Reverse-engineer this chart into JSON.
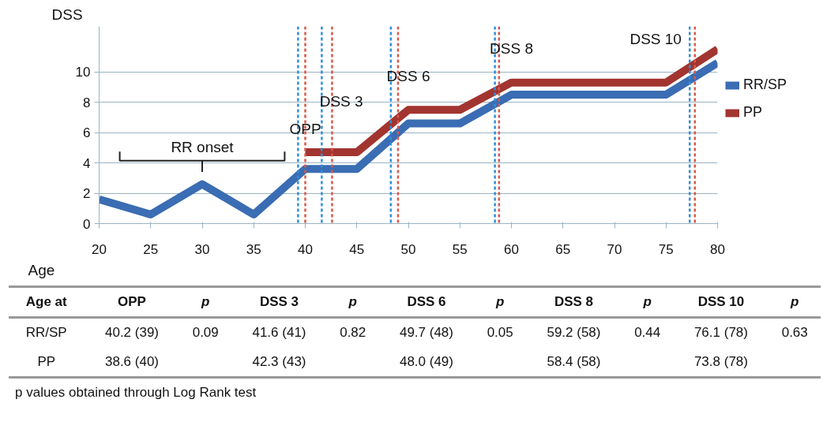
{
  "chart_data": {
    "type": "line",
    "xlabel": "Age",
    "ylabel": "DSS",
    "xlim": [
      20,
      80
    ],
    "xticks": [
      20,
      25,
      30,
      35,
      40,
      45,
      50,
      55,
      60,
      65,
      70,
      75,
      80
    ],
    "ylim": [
      0,
      13
    ],
    "yticks": [
      0,
      2,
      4,
      6,
      8,
      10
    ],
    "grid": "y",
    "legend": "right",
    "marker": "none",
    "line_style": "solid",
    "series": [
      {
        "name": "RR/SP",
        "color": "#3a6db3",
        "x": [
          20,
          25,
          30,
          35,
          40,
          45,
          50,
          55,
          60,
          75,
          80
        ],
        "values": [
          1.6,
          0.6,
          2.6,
          0.6,
          3.6,
          3.6,
          6.6,
          6.6,
          8.5,
          8.5,
          10.6
        ]
      },
      {
        "name": "PP",
        "color": "#a23530",
        "x": [
          40,
          45,
          50,
          55,
          60,
          75,
          80
        ],
        "values": [
          4.7,
          4.7,
          7.5,
          7.5,
          9.3,
          9.3,
          11.5
        ]
      }
    ],
    "ref_lines": [
      {
        "axis": "x",
        "value": 39.3,
        "color": "#2f8fdc",
        "line_style": "dashed"
      },
      {
        "axis": "x",
        "value": 41.6,
        "color": "#2f8fdc",
        "line_style": "dashed"
      },
      {
        "axis": "x",
        "value": 48.3,
        "color": "#2f8fdc",
        "line_style": "dashed"
      },
      {
        "axis": "x",
        "value": 58.4,
        "color": "#2f8fdc",
        "line_style": "dashed"
      },
      {
        "axis": "x",
        "value": 77.3,
        "color": "#2f8fdc",
        "line_style": "dashed"
      },
      {
        "axis": "x",
        "value": 40.0,
        "color": "#d9584a",
        "line_style": "dashed"
      },
      {
        "axis": "x",
        "value": 42.6,
        "color": "#d9584a",
        "line_style": "dashed"
      },
      {
        "axis": "x",
        "value": 49.0,
        "color": "#d9584a",
        "line_style": "dashed"
      },
      {
        "axis": "x",
        "value": 58.8,
        "color": "#d9584a",
        "line_style": "dashed"
      },
      {
        "axis": "x",
        "value": 77.8,
        "color": "#d9584a",
        "line_style": "dashed"
      }
    ],
    "annotations": [
      "RR onset",
      "OPP",
      "DSS 3",
      "DSS 6",
      "DSS 8",
      "DSS 10",
      "Age at",
      "OPP",
      "p",
      "DSS 3",
      "p",
      "DSS 6",
      "p",
      "DSS 8",
      "p",
      "DSS 10",
      "p",
      "RR/SP",
      "40.2 (39)",
      "0.09",
      "41.6 (41)",
      "0.82",
      "49.7 (48)",
      "0.05",
      "59.2 (58)",
      "0.44",
      "76.1 (78)",
      "0.63",
      "PP",
      "38.6 (40)",
      "42.3 (43)",
      "48.0 (49)",
      "58.4 (58)",
      "73.8 (78)",
      "p values obtained through Log Rank test"
    ]
  }
}
